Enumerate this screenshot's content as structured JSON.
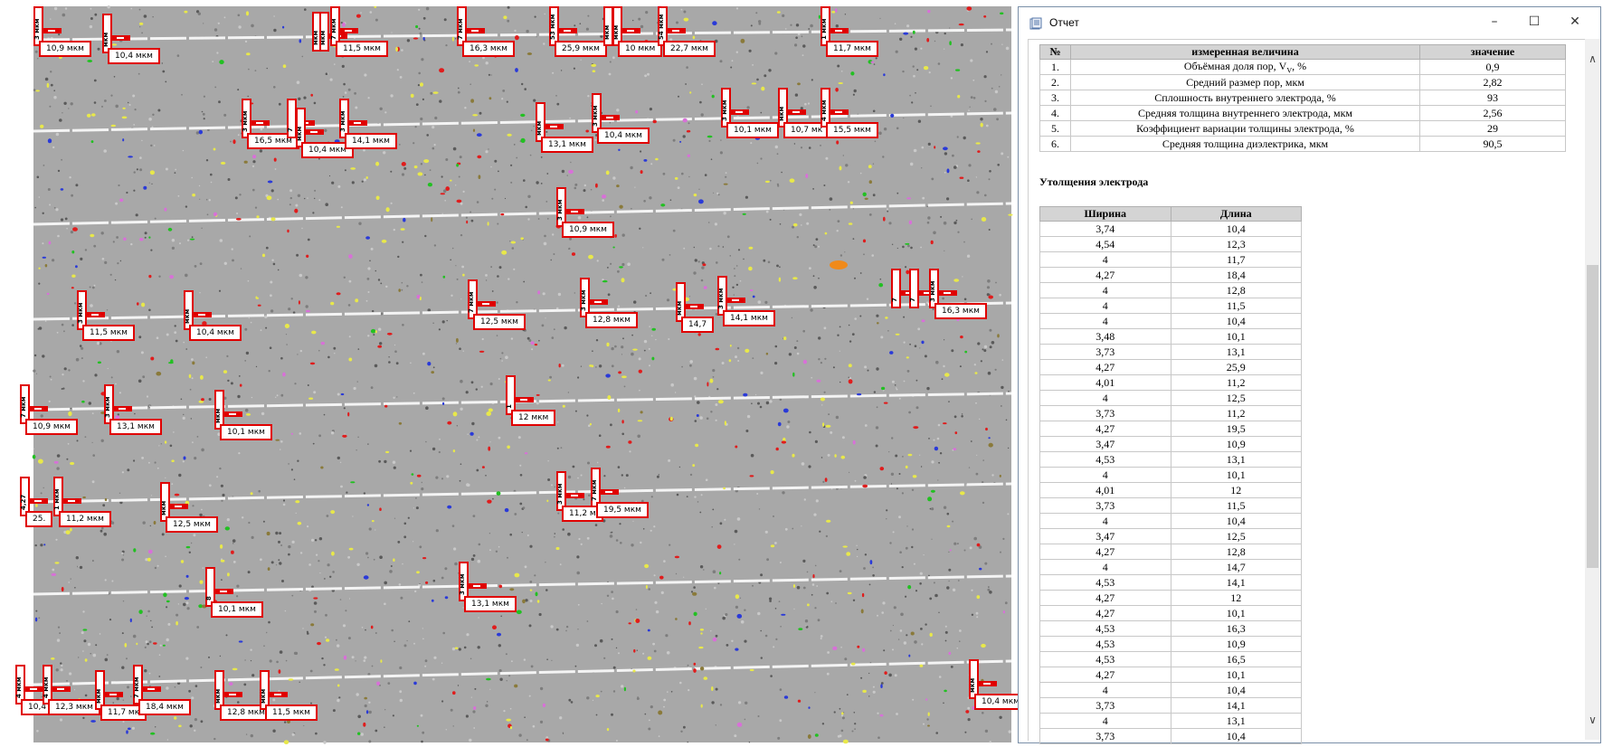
{
  "window": {
    "title": "Отчет"
  },
  "colors": {
    "annotation_red": "#e00000",
    "micrograph_gray": "#a9a9a9",
    "table_header": "#d4d4d4"
  },
  "icons": {
    "app": "report-app-icon",
    "minimize": "minimize-icon",
    "maximize": "maximize-icon",
    "close": "close-icon",
    "scroll_up": "chevron-up-icon",
    "scroll_down": "chevron-down-icon"
  },
  "params_table": {
    "headers": [
      "№",
      "измеренная величина",
      "значение"
    ],
    "rows": [
      {
        "n": "1.",
        "name": "Объёмная доля пор, VV, %",
        "value": "0,9"
      },
      {
        "n": "2.",
        "name": "Средний размер пор, мкм",
        "value": "2,82"
      },
      {
        "n": "3.",
        "name": "Сплошность внутреннего электрода, %",
        "value": "93"
      },
      {
        "n": "4.",
        "name": "Средняя толщина внутреннего электрода, мкм",
        "value": "2,56"
      },
      {
        "n": "5.",
        "name": "Коэффициент вариации толщины электрода, %",
        "value": "29"
      },
      {
        "n": "6.",
        "name": "Средняя толщина диэлектрика, мкм",
        "value": "90,5"
      }
    ]
  },
  "section_title": "Утолщения электрода",
  "thick_table": {
    "headers": [
      "Ширина",
      "Длина"
    ],
    "rows": [
      [
        "3,74",
        "10,4"
      ],
      [
        "4,54",
        "12,3"
      ],
      [
        "4",
        "11,7"
      ],
      [
        "4,27",
        "18,4"
      ],
      [
        "4",
        "12,8"
      ],
      [
        "4",
        "11,5"
      ],
      [
        "4",
        "10,4"
      ],
      [
        "3,48",
        "10,1"
      ],
      [
        "3,73",
        "13,1"
      ],
      [
        "4,27",
        "25,9"
      ],
      [
        "4,01",
        "11,2"
      ],
      [
        "4",
        "12,5"
      ],
      [
        "3,73",
        "11,2"
      ],
      [
        "4,27",
        "19,5"
      ],
      [
        "3,47",
        "10,9"
      ],
      [
        "4,53",
        "13,1"
      ],
      [
        "4",
        "10,1"
      ],
      [
        "4,01",
        "12"
      ],
      [
        "3,73",
        "11,5"
      ],
      [
        "4",
        "10,4"
      ],
      [
        "3,47",
        "12,5"
      ],
      [
        "4,27",
        "12,8"
      ],
      [
        "4",
        "14,7"
      ],
      [
        "4,53",
        "14,1"
      ],
      [
        "4,27",
        "12"
      ],
      [
        "4,27",
        "10,1"
      ],
      [
        "4,53",
        "16,3"
      ],
      [
        "4,53",
        "10,9"
      ],
      [
        "4,53",
        "16,5"
      ],
      [
        "4,27",
        "10,1"
      ],
      [
        "4",
        "10,4"
      ],
      [
        "3,73",
        "14,1"
      ],
      [
        "4",
        "13,1"
      ],
      [
        "3,73",
        "10,4"
      ]
    ]
  },
  "micrograph": {
    "annotations": [
      {
        "v": "3 мкм",
        "h": "10,9 мкм"
      },
      {
        "v": "мкм",
        "h": "10,4 мкм"
      },
      {
        "v": "мкм",
        "h": ""
      },
      {
        "v": "мкм",
        "h": ""
      },
      {
        "v": "7 мкм",
        "h": "11,5 мкм"
      },
      {
        "v": "7 мкм",
        "h": "16,3 мкм"
      },
      {
        "v": "53 мкм",
        "h": "25,9 мкм"
      },
      {
        "v": "мкм",
        "h": ""
      },
      {
        "v": "мкм",
        "h": "10 мкм"
      },
      {
        "v": "54 мкм",
        "h": "22,7 мкм"
      },
      {
        "v": "1 мкм",
        "h": "11,7 мкм"
      },
      {
        "v": "3 мкм",
        "h": "16,5 мкм"
      },
      {
        "v": "7",
        "h": ""
      },
      {
        "v": "мкм",
        "h": "10,4 мкм"
      },
      {
        "v": "3 мкм",
        "h": "14,1 мкм"
      },
      {
        "v": "мкм",
        "h": "13,1 мкм"
      },
      {
        "v": "3 мкм",
        "h": "10,4 мкм"
      },
      {
        "v": "3 мкм",
        "h": "10,1 мкм"
      },
      {
        "v": "мкм",
        "h": "10,7 мк"
      },
      {
        "v": "4 мкм",
        "h": "15,5 мкм"
      },
      {
        "v": "3 мкм",
        "h": "10,9 мкм"
      },
      {
        "v": "3 мкм",
        "h": "11,5 мкм"
      },
      {
        "v": "мкм",
        "h": "10,4 мкм"
      },
      {
        "v": "7 мкм",
        "h": "12,5 мкм"
      },
      {
        "v": "3 мкм",
        "h": "12,8 мкм"
      },
      {
        "v": "мкм",
        "h": "14,7"
      },
      {
        "v": "3 мкм",
        "h": "14,1 мкм"
      },
      {
        "v": "7",
        "h": ""
      },
      {
        "v": "7",
        "h": ""
      },
      {
        "v": "3 мкм",
        "h": "16,3 мкм"
      },
      {
        "v": "7 мкм",
        "h": "10,9 мкм"
      },
      {
        "v": "3 мкм",
        "h": "13,1 мкм"
      },
      {
        "v": "мкм",
        "h": "10,1 мкм"
      },
      {
        "v": "1",
        "h": "12 мкм"
      },
      {
        "v": "4,27",
        "h": "25."
      },
      {
        "v": "1 мкм",
        "h": "11,2 мкм"
      },
      {
        "v": "мкм",
        "h": "12,5 мкм"
      },
      {
        "v": "3 мкм",
        "h": "11,2 м"
      },
      {
        "v": "7 мкм",
        "h": "19,5 мкм"
      },
      {
        "v": "8",
        "h": "10,1 мкм"
      },
      {
        "v": "3 мкм",
        "h": "13,1 мкм"
      },
      {
        "v": "4 мкм",
        "h": "10,4"
      },
      {
        "v": "4 мкм",
        "h": "12,3 мкм"
      },
      {
        "v": "мкм",
        "h": "11,7 мк"
      },
      {
        "v": "7 мкм",
        "h": "18,4 мкм"
      },
      {
        "v": "мкм",
        "h": "12,8 мкм"
      },
      {
        "v": "мкм",
        "h": "11,5 мкм"
      },
      {
        "v": "мкм",
        "h": "10,4 мкм"
      }
    ]
  }
}
